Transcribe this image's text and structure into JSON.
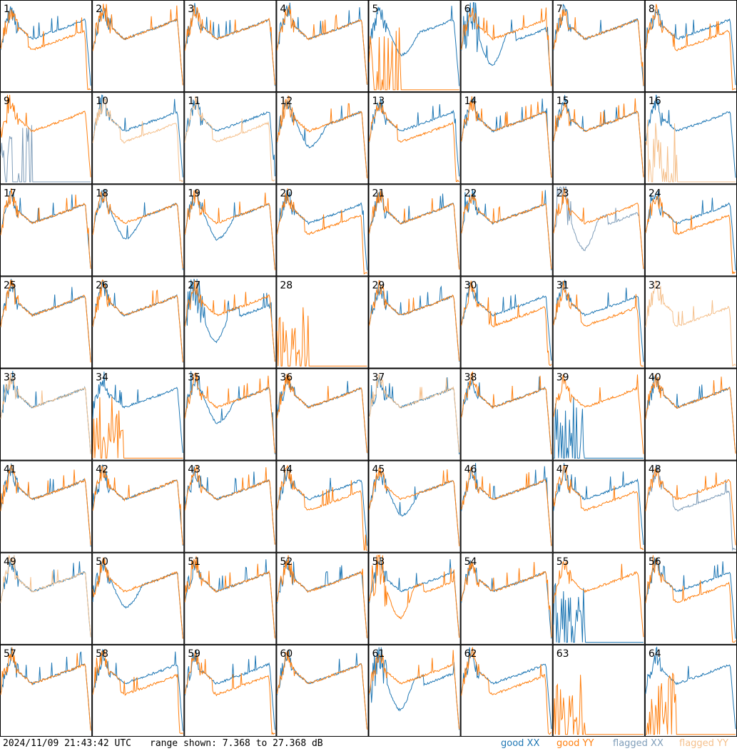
{
  "footer": {
    "timestamp": "2024/11/09 21:43:42 UTC",
    "range_text": "range shown: 7.368 to 27.368 dB",
    "legend": [
      {
        "label": "good XX",
        "color": "#1f77b4"
      },
      {
        "label": "good YY",
        "color": "#ff7f0e"
      },
      {
        "label": "flagged XX",
        "color": "#7f9db9"
      },
      {
        "label": "flagged YY",
        "color": "#f5c08c"
      }
    ]
  },
  "chart_data": {
    "type": "line",
    "ylim": [
      7.368,
      27.368
    ],
    "units": "dB",
    "grid": {
      "rows": 8,
      "cols": 8
    },
    "panels": [
      {
        "id": "1",
        "xx": "A",
        "yy": "L"
      },
      {
        "id": "2",
        "xx": "A",
        "yy": "A"
      },
      {
        "id": "3",
        "xx": "A",
        "yy": "A"
      },
      {
        "id": "4",
        "xx": "A",
        "yy": "A"
      },
      {
        "id": "5",
        "xx": "B",
        "yy": "SPK"
      },
      {
        "id": "6",
        "xx": "N",
        "yy": "A"
      },
      {
        "id": "7",
        "xx": "A",
        "yy": "A"
      },
      {
        "id": "8",
        "xx": "A",
        "yy": "L"
      },
      {
        "id": "9",
        "xx": "FSPK",
        "yy": "A"
      },
      {
        "id": "10",
        "xx": "A",
        "yy": "FL"
      },
      {
        "id": "11",
        "xx": "A",
        "yy": "FL"
      },
      {
        "id": "12",
        "xx": "B",
        "yy": "A"
      },
      {
        "id": "13",
        "xx": "A",
        "yy": "L"
      },
      {
        "id": "14",
        "xx": "A",
        "yy": "A"
      },
      {
        "id": "15",
        "xx": "A",
        "yy": "A"
      },
      {
        "id": "16",
        "xx": "A",
        "yy": "FSPK"
      },
      {
        "id": "17",
        "xx": "A",
        "yy": "A"
      },
      {
        "id": "18",
        "xx": "B",
        "yy": "A"
      },
      {
        "id": "19",
        "xx": "B",
        "yy": "A"
      },
      {
        "id": "20",
        "xx": "A",
        "yy": "L"
      },
      {
        "id": "21",
        "xx": "A",
        "yy": "A"
      },
      {
        "id": "22",
        "xx": "A",
        "yy": "A"
      },
      {
        "id": "23",
        "xx": "FN",
        "yy": "A"
      },
      {
        "id": "24",
        "xx": "A",
        "yy": "L"
      },
      {
        "id": "25",
        "xx": "A",
        "yy": "A"
      },
      {
        "id": "26",
        "xx": "A",
        "yy": "A"
      },
      {
        "id": "27",
        "xx": "N",
        "yy": "A"
      },
      {
        "id": "28",
        "xx": "NONE",
        "yy": "SPK"
      },
      {
        "id": "29",
        "xx": "A",
        "yy": "A"
      },
      {
        "id": "30",
        "xx": "A",
        "yy": "L"
      },
      {
        "id": "31",
        "xx": "A",
        "yy": "L"
      },
      {
        "id": "32",
        "xx": "NONE",
        "yy": "FL"
      },
      {
        "id": "33",
        "xx": "A",
        "yy": "FA"
      },
      {
        "id": "34",
        "xx": "A",
        "yy": "SPK"
      },
      {
        "id": "35",
        "xx": "B",
        "yy": "A"
      },
      {
        "id": "36",
        "xx": "A",
        "yy": "A"
      },
      {
        "id": "37",
        "xx": "A",
        "yy": "FA"
      },
      {
        "id": "38",
        "xx": "A",
        "yy": "A"
      },
      {
        "id": "39",
        "xx": "SPK",
        "yy": "A"
      },
      {
        "id": "40",
        "xx": "A",
        "yy": "A"
      },
      {
        "id": "41",
        "xx": "A",
        "yy": "A"
      },
      {
        "id": "42",
        "xx": "A",
        "yy": "A"
      },
      {
        "id": "43",
        "xx": "A",
        "yy": "A"
      },
      {
        "id": "44",
        "xx": "A",
        "yy": "L"
      },
      {
        "id": "45",
        "xx": "B",
        "yy": "A"
      },
      {
        "id": "46",
        "xx": "A",
        "yy": "A"
      },
      {
        "id": "47",
        "xx": "A",
        "yy": "L"
      },
      {
        "id": "48",
        "xx": "FL",
        "yy": "A"
      },
      {
        "id": "49",
        "xx": "A",
        "yy": "FA"
      },
      {
        "id": "50",
        "xx": "B",
        "yy": "A"
      },
      {
        "id": "51",
        "xx": "A",
        "yy": "A"
      },
      {
        "id": "52",
        "xx": "A",
        "yy": "A"
      },
      {
        "id": "53",
        "xx": "A",
        "yy": "N"
      },
      {
        "id": "54",
        "xx": "A",
        "yy": "A"
      },
      {
        "id": "55",
        "xx": "SPK",
        "yy": "A"
      },
      {
        "id": "56",
        "xx": "A",
        "yy": "L"
      },
      {
        "id": "57",
        "xx": "A",
        "yy": "A"
      },
      {
        "id": "58",
        "xx": "A",
        "yy": "L"
      },
      {
        "id": "59",
        "xx": "A",
        "yy": "L"
      },
      {
        "id": "60",
        "xx": "A",
        "yy": "A"
      },
      {
        "id": "61",
        "xx": "N",
        "yy": "A"
      },
      {
        "id": "62",
        "xx": "A",
        "yy": "L"
      },
      {
        "id": "63",
        "xx": "NONE",
        "yy": "SPK"
      },
      {
        "id": "64",
        "xx": "A",
        "yy": "SPK"
      }
    ]
  }
}
